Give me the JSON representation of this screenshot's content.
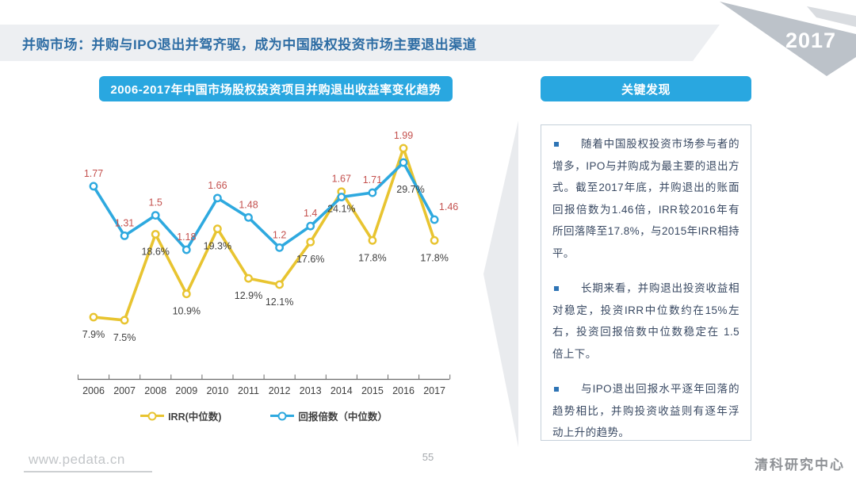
{
  "slide": {
    "title": "并购市场：并购与IPO退出并驾齐驱，成为中国股权投资市场主要退出渠道",
    "year_badge": "2017",
    "footer": {
      "website": "www.pedata.cn",
      "page_number": "55",
      "organization": "清科研究中心"
    }
  },
  "chart": {
    "header": "2006-2017年中国市场股权投资项目并购退出收益率变化趋势"
  },
  "findings": {
    "header": "关键发现",
    "bullets": [
      "随着中国股权投资市场参与者的增多，IPO与并购成为最主要的退出方式。截至2017年底，并购退出的账面回报倍数为1.46倍，IRR较2016年有所回落降至17.8%，与2015年IRR相持平。",
      "长期来看，并购退出投资收益相对稳定，投资IRR中位数约在15%左右，投资回报倍数中位数稳定在 1.5 倍上下。",
      "与IPO退出回报水平逐年回落的趋势相比，并购投资收益则有逐年浮动上升的趋势。"
    ]
  },
  "chart_data": {
    "type": "line",
    "title": "2006-2017年中国市场股权投资项目并购退出收益率变化趋势",
    "categories": [
      "2006",
      "2007",
      "2008",
      "2009",
      "2010",
      "2011",
      "2012",
      "2013",
      "2014",
      "2015",
      "2016",
      "2017"
    ],
    "series": [
      {
        "name": "IRR(中位数)",
        "unit": "percent",
        "color": "#E8C430",
        "values": [
          7.9,
          7.5,
          18.6,
          10.9,
          19.3,
          12.9,
          12.1,
          17.6,
          24.1,
          17.8,
          29.7,
          17.8
        ],
        "labels": [
          "7.9%",
          "7.5%",
          "18.6%",
          "10.9%",
          "19.3%",
          "12.9%",
          "12.1%",
          "17.6%",
          "24.1%",
          "17.8%",
          "29.7%",
          "17.8%"
        ]
      },
      {
        "name": "回报倍数（中位数）",
        "unit": "multiple",
        "color": "#2EA9DF",
        "values": [
          1.77,
          1.31,
          1.5,
          1.18,
          1.66,
          1.48,
          1.2,
          1.4,
          1.67,
          1.71,
          1.99,
          1.46
        ],
        "labels": [
          "1.77",
          "1.31",
          "1.5",
          "1.18",
          "1.66",
          "1.48",
          "1.2",
          "1.4",
          "1.67",
          "1.71",
          "1.99",
          "1.46"
        ]
      }
    ],
    "legend_position": "bottom",
    "grid": false,
    "x_axis": {
      "visible": true
    },
    "y_axis": {
      "visible": false
    },
    "data_label_colors": {
      "irr_series": "#404040",
      "multiple_series": "#C4514E"
    }
  },
  "colors": {
    "accent_blue": "#29A7E0",
    "title_text": "#2E6DA4",
    "finding_text": "#3A4A63",
    "bullet": "#2E74B5"
  }
}
